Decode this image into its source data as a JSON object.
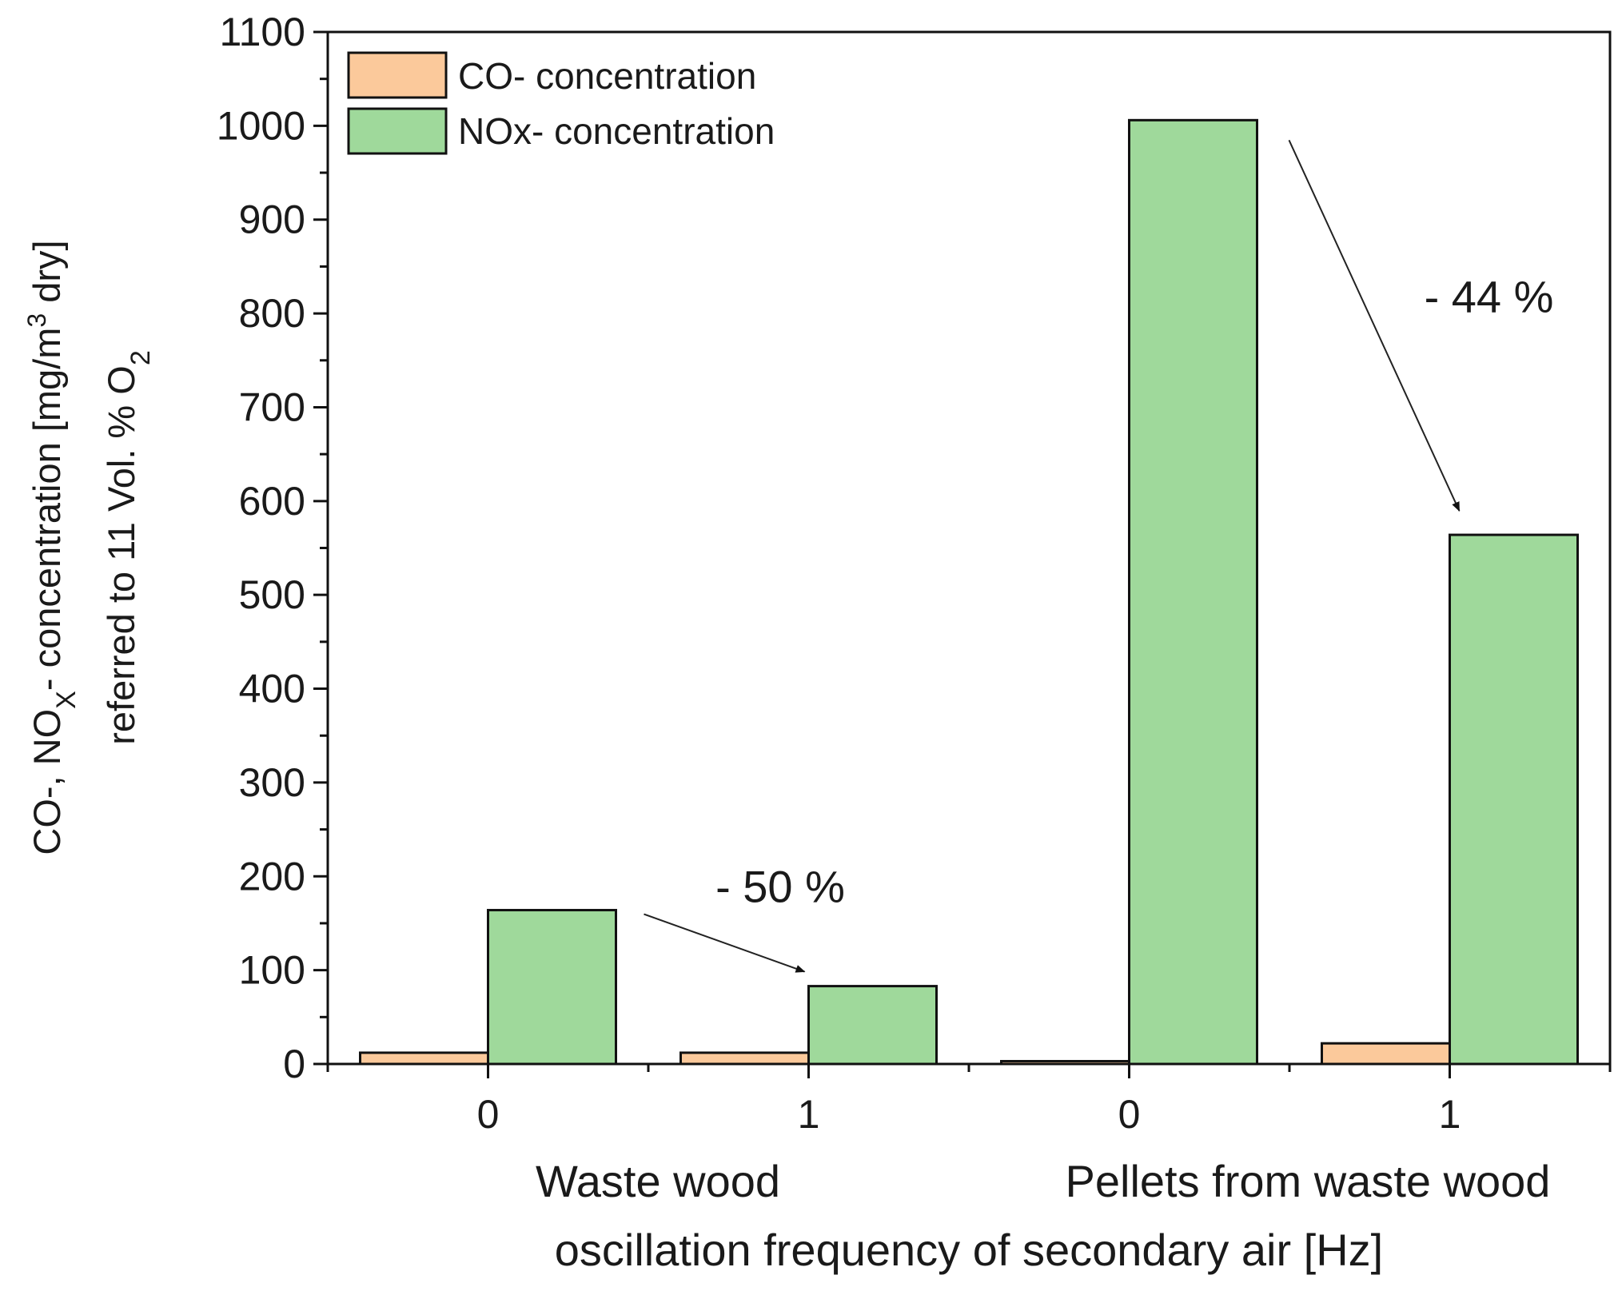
{
  "chart_data": {
    "type": "bar",
    "xlabel": "oscillation frequency of secondary air [Hz]",
    "ylabel_line1_parts": [
      "CO-, NO",
      "X",
      "- concentration [mg/m",
      "3",
      " dry]"
    ],
    "ylabel_line2_parts": [
      "referred to 11 Vol. % O",
      "2"
    ],
    "ylim": [
      0,
      1100
    ],
    "yticks": [
      "0",
      "100",
      "200",
      "300",
      "400",
      "500",
      "600",
      "700",
      "800",
      "900",
      "1000",
      "1100"
    ],
    "categories": [
      "0",
      "1",
      "0",
      "1"
    ],
    "groups": [
      {
        "label": "Waste wood",
        "categories": [
          "0",
          "1"
        ]
      },
      {
        "label": "Pellets from waste wood",
        "categories": [
          "0",
          "1"
        ]
      }
    ],
    "series": [
      {
        "name": "CO- concentration",
        "color": "#fbc99b",
        "values": [
          12,
          12,
          3,
          22
        ]
      },
      {
        "name": "NOx- concentration",
        "color": "#9fd99b",
        "values": [
          164,
          83,
          1006,
          564
        ]
      }
    ],
    "annotations": [
      {
        "text": "- 50 %",
        "from_category": 0,
        "to_category": 1,
        "series": "NOx- concentration"
      },
      {
        "text": "- 44 %",
        "from_category": 2,
        "to_category": 3,
        "series": "NOx- concentration"
      }
    ],
    "legend": "top-left"
  }
}
